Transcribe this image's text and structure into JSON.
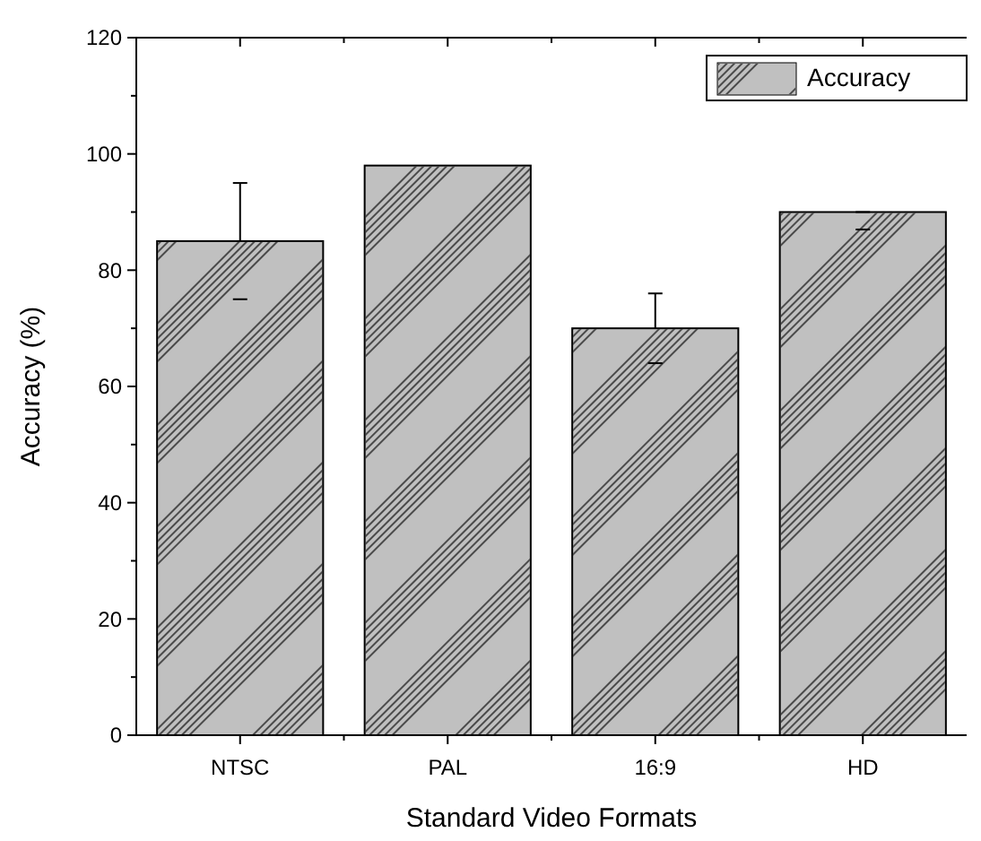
{
  "chart_data": {
    "type": "bar",
    "xlabel": "Standard Video Formats",
    "ylabel": "Accuracy (%)",
    "categories": [
      "NTSC",
      "PAL",
      "16:9",
      "HD"
    ],
    "series": [
      {
        "name": "Accuracy",
        "color": "#c0c0c0",
        "values": [
          85,
          98,
          70,
          90
        ],
        "errors": [
          [
            75,
            95
          ],
          null,
          [
            64,
            76
          ],
          [
            87,
            90
          ]
        ]
      }
    ],
    "ylim": [
      0,
      120
    ],
    "yticks": [
      0,
      20,
      40,
      60,
      80,
      100,
      120
    ],
    "grid": false,
    "legend": "top right"
  }
}
